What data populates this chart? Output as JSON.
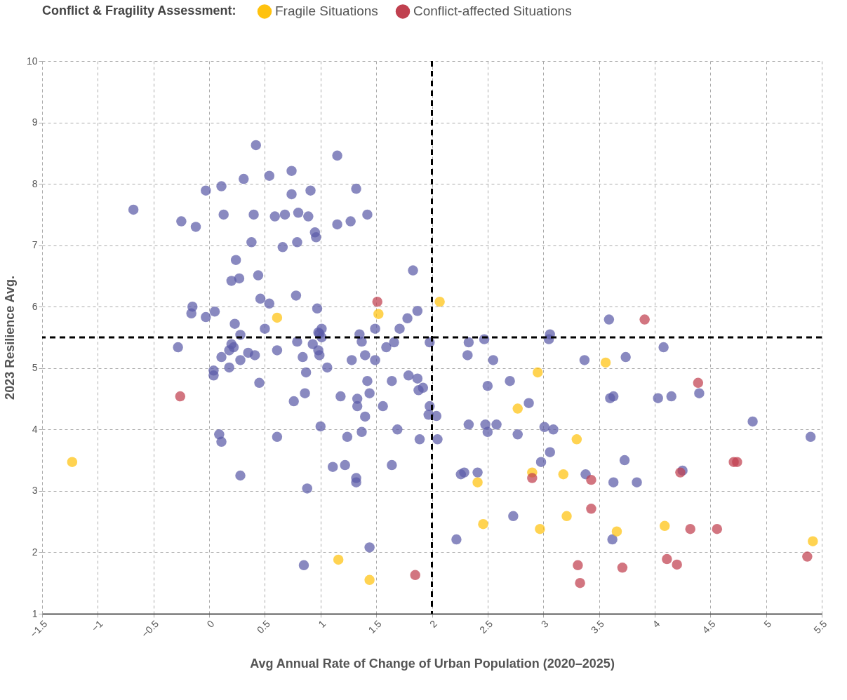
{
  "chart_data": {
    "type": "scatter",
    "xlabel": "Avg Annual Rate of Change of Urban Population (2020–2025)",
    "ylabel": "2023 Resilience Avg.",
    "legend_title": "Conflict & Fragility Assessment:",
    "legend": "top",
    "grid": true,
    "marker": "circle",
    "xlim": [
      -1.5,
      5.5
    ],
    "ylim": [
      1,
      10
    ],
    "xticks": [
      -1.5,
      -1,
      -0.5,
      0,
      0.5,
      1,
      1.5,
      2,
      2.5,
      3,
      3.5,
      4,
      4.5,
      5,
      5.5
    ],
    "yticks": [
      1,
      2,
      3,
      4,
      5,
      6,
      7,
      8,
      9,
      10
    ],
    "ref_lines": [
      {
        "axis": "x",
        "value": 2,
        "color": "#000000",
        "line_style": "dashed"
      },
      {
        "axis": "y",
        "value": 5.5,
        "color": "#000000",
        "line_style": "dashed"
      }
    ],
    "series": [
      {
        "color": "#5c5ca8",
        "x": [
          -0.68,
          -0.25,
          -0.12,
          -0.03,
          0.11,
          0.13,
          0.31,
          0.42,
          0.4,
          0.54,
          0.59,
          0.68,
          0.74,
          0.74,
          0.8,
          0.89,
          0.91,
          0.95,
          0.96,
          1.15,
          1.15,
          1.27,
          1.32,
          1.42,
          0.38,
          0.66,
          0.79,
          0.24,
          0.44,
          0.27,
          0.2,
          1.83,
          0.78,
          0.46,
          0.54,
          -0.15,
          -0.16,
          0.05,
          -0.03,
          0.23,
          0.5,
          0.97,
          1.87,
          1.78,
          1.71,
          1.49,
          1.01,
          0.98,
          0.99,
          1.01,
          1.35,
          1.37,
          0.79,
          0.28,
          -0.28,
          0.2,
          0.22,
          0.18,
          0.11,
          0.28,
          0.35,
          0.41,
          0.61,
          0.93,
          0.98,
          0.99,
          0.84,
          1.4,
          1.28,
          1.49,
          1.59,
          1.66,
          1.98,
          1.06,
          0.04,
          0.04,
          0.18,
          0.87,
          1.79,
          1.64,
          1.42,
          1.87,
          0.45,
          1.88,
          1.92,
          1.44,
          1.18,
          1.33,
          0.76,
          0.86,
          1.56,
          1.33,
          1.98,
          1.4,
          1.97,
          2.04,
          1.0,
          1.69,
          1.37,
          1.24,
          0.61,
          0.09,
          0.11,
          1.89,
          2.05,
          1.64,
          1.22,
          1.11,
          1.32,
          1.32,
          0.28,
          0.88,
          1.44,
          0.85,
          2.33,
          2.47,
          2.32,
          2.55,
          2.5,
          2.7,
          2.87,
          2.33,
          2.48,
          2.58,
          2.5,
          3.01,
          3.09,
          2.77,
          3.06,
          2.98,
          2.26,
          2.29,
          2.41,
          2.73,
          2.22,
          3.06,
          3.05,
          3.37,
          3.59,
          3.74,
          4.08,
          3.6,
          3.63,
          4.03,
          4.15,
          4.4,
          4.88,
          5.4,
          3.73,
          3.38,
          3.63,
          3.84,
          4.25,
          3.62
        ],
        "values": [
          7.58,
          7.39,
          7.3,
          7.89,
          7.96,
          7.5,
          8.08,
          8.63,
          7.5,
          8.13,
          7.47,
          7.5,
          8.21,
          7.83,
          7.53,
          7.47,
          7.89,
          7.21,
          7.13,
          8.46,
          7.34,
          7.39,
          7.92,
          7.5,
          7.05,
          6.97,
          7.05,
          6.76,
          6.51,
          6.46,
          6.42,
          6.59,
          6.18,
          6.13,
          6.05,
          6.0,
          5.89,
          5.92,
          5.83,
          5.72,
          5.64,
          5.97,
          5.93,
          5.81,
          5.64,
          5.64,
          5.64,
          5.58,
          5.56,
          5.5,
          5.55,
          5.43,
          5.43,
          5.54,
          5.34,
          5.39,
          5.34,
          5.29,
          5.18,
          5.13,
          5.25,
          5.21,
          5.29,
          5.39,
          5.29,
          5.21,
          5.18,
          5.21,
          5.13,
          5.13,
          5.34,
          5.42,
          5.42,
          5.01,
          4.96,
          4.88,
          5.01,
          4.93,
          4.88,
          4.79,
          4.79,
          4.83,
          4.76,
          4.64,
          4.68,
          4.59,
          4.54,
          4.5,
          4.46,
          4.59,
          4.38,
          4.38,
          4.38,
          4.21,
          4.24,
          4.22,
          4.05,
          4.0,
          3.96,
          3.88,
          3.88,
          3.92,
          3.8,
          3.84,
          3.84,
          3.42,
          3.42,
          3.39,
          3.21,
          3.14,
          3.25,
          3.04,
          2.08,
          1.79,
          5.42,
          5.47,
          5.21,
          5.13,
          4.71,
          4.79,
          4.43,
          4.08,
          4.08,
          4.08,
          3.96,
          4.04,
          4.0,
          3.92,
          3.63,
          3.47,
          3.27,
          3.3,
          3.3,
          2.59,
          2.21,
          5.55,
          5.47,
          5.13,
          5.79,
          5.18,
          5.34,
          4.51,
          4.54,
          4.51,
          4.54,
          4.59,
          4.13,
          3.88,
          3.5,
          3.27,
          3.14,
          3.14,
          3.33,
          2.21
        ]
      },
      {
        "name": "Fragile Situations",
        "color": "#ffc20e",
        "x": [
          -1.23,
          0.61,
          1.52,
          2.07,
          3.56,
          2.95,
          2.77,
          3.3,
          2.9,
          2.41,
          3.18,
          2.46,
          3.21,
          2.97,
          3.66,
          4.09,
          5.42,
          1.16,
          1.44
        ],
        "values": [
          3.47,
          5.82,
          5.88,
          6.08,
          5.09,
          4.93,
          4.34,
          3.84,
          3.3,
          3.14,
          3.27,
          2.46,
          2.59,
          2.38,
          2.34,
          2.43,
          2.18,
          1.88,
          1.55
        ]
      },
      {
        "name": "Conflict-affected Situations",
        "color": "#c0404f",
        "x": [
          1.51,
          -0.26,
          3.91,
          4.39,
          4.71,
          4.74,
          4.23,
          3.43,
          2.9,
          3.43,
          4.32,
          4.56,
          4.11,
          4.2,
          3.71,
          3.31,
          3.33,
          1.85,
          5.37
        ],
        "values": [
          6.08,
          4.54,
          5.79,
          4.76,
          3.47,
          3.47,
          3.3,
          3.18,
          3.21,
          2.71,
          2.38,
          2.38,
          1.89,
          1.8,
          1.75,
          1.79,
          1.5,
          1.63,
          1.93
        ]
      }
    ]
  }
}
